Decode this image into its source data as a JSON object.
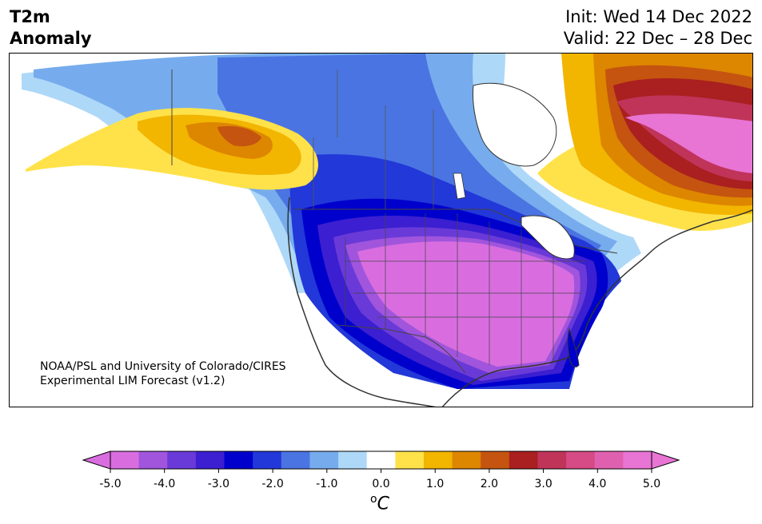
{
  "header": {
    "variable": "T2m",
    "subtitle": "Anomaly",
    "init": "Init: Wed 14 Dec 2022",
    "valid": "Valid: 22 Dec – 28 Dec"
  },
  "map": {
    "credit_line1": "NOAA/PSL and University of Colorado/CIRES",
    "credit_line2": "Experimental LIM Forecast (v1.2)"
  },
  "colorbar": {
    "unit_degree": "o",
    "unit_letter": "C",
    "ticks": [
      "-5.0",
      "-4.0",
      "-3.0",
      "-2.0",
      "-1.0",
      "0.0",
      "1.0",
      "2.0",
      "3.0",
      "4.0",
      "5.0"
    ],
    "colors": [
      "#d96de0",
      "#a055dc",
      "#6a3ad8",
      "#3b1fd0",
      "#0000cd",
      "#2238d8",
      "#4a74e2",
      "#76aced",
      "#aed8f8",
      "#ffffff",
      "#ffe24a",
      "#f2b500",
      "#dd8600",
      "#c45410",
      "#aa1f1f",
      "#c0345a",
      "#d64a85",
      "#e060b0",
      "#e874d4"
    ],
    "under_color": "#d96de0",
    "over_color": "#e874d4"
  }
}
